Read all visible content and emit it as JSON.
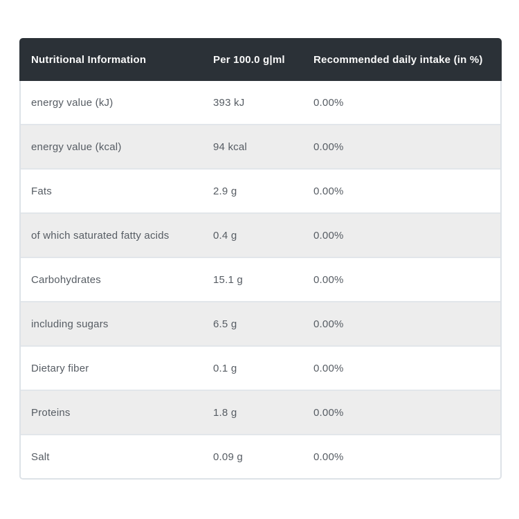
{
  "colors": {
    "header_bg": "#2b3137",
    "header_text": "#fafafa",
    "row_bg": "#ffffff",
    "row_alt_bg": "#ededed",
    "row_text": "#565c63",
    "border": "#dde2e7",
    "page_bg": "#ffffff"
  },
  "table": {
    "columns": [
      "Nutritional Information",
      "Per 100.0 g|ml",
      "Recommended daily intake (in %)"
    ],
    "rows": [
      {
        "label": "energy value (kJ)",
        "per100": "393 kJ",
        "rdi": "0.00%"
      },
      {
        "label": "energy value (kcal)",
        "per100": "94 kcal",
        "rdi": "0.00%"
      },
      {
        "label": "Fats",
        "per100": "2.9 g",
        "rdi": "0.00%"
      },
      {
        "label": "of which saturated fatty acids",
        "per100": "0.4 g",
        "rdi": "0.00%"
      },
      {
        "label": "Carbohydrates",
        "per100": "15.1 g",
        "rdi": "0.00%"
      },
      {
        "label": "including sugars",
        "per100": "6.5 g",
        "rdi": "0.00%"
      },
      {
        "label": "Dietary fiber",
        "per100": "0.1 g",
        "rdi": "0.00%"
      },
      {
        "label": "Proteins",
        "per100": "1.8 g",
        "rdi": "0.00%"
      },
      {
        "label": "Salt",
        "per100": "0.09 g",
        "rdi": "0.00%"
      }
    ]
  }
}
